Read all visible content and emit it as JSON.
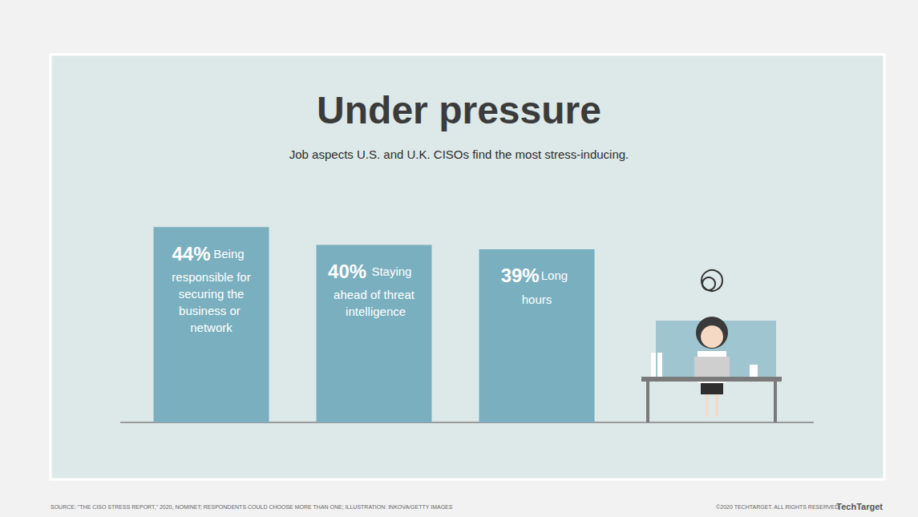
{
  "chart_data": {
    "type": "bar",
    "title": "Under pressure",
    "subtitle": "Job aspects U.S. and U.K. CISOs find the most stress-inducing.",
    "categories": [
      "Being responsible for securing the business or network",
      "Staying ahead of threat intelligence",
      "Long hours"
    ],
    "values": [
      44,
      40,
      39
    ],
    "value_labels": [
      "44%",
      "40%",
      "39%"
    ],
    "color": "#7aafbf",
    "ylim": [
      0,
      50
    ],
    "grid": false,
    "data_labels": true,
    "tick_labels": false,
    "annotations": [
      "SOURCE: \"THE CISO STRESS REPORT,\" 2020, NOMINET; RESPONDENTS COULD CHOOSE MORE THAN ONE; ILLUSTRATION: INKOVA/GETTY IMAGES",
      "©2020 TECHTARGET. ALL RIGHTS RESERVED",
      "TechTarget"
    ]
  }
}
